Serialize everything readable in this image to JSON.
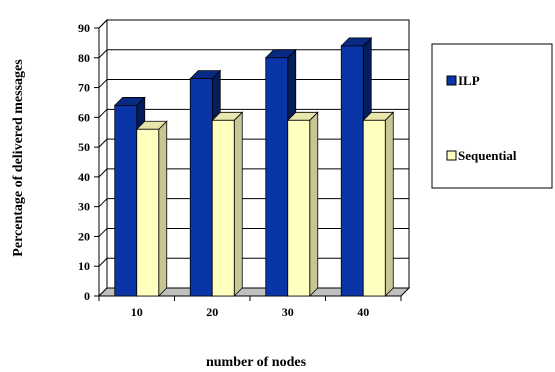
{
  "chart_data": {
    "type": "bar",
    "categories": [
      "10",
      "20",
      "30",
      "40"
    ],
    "series": [
      {
        "name": "ILP",
        "values": [
          64,
          73,
          80,
          84
        ],
        "color": "#0a35a6"
      },
      {
        "name": "Sequential",
        "values": [
          56,
          59,
          59,
          59
        ],
        "color": "#ffffc0"
      }
    ],
    "xlabel": "number of nodes",
    "ylabel": "Percentage of delivered messages",
    "ylim": [
      0,
      90
    ],
    "yticks": [
      0,
      10,
      20,
      30,
      40,
      50,
      60,
      70,
      80,
      90
    ],
    "grid": true,
    "legend_position": "right",
    "style": "3d-bar"
  }
}
